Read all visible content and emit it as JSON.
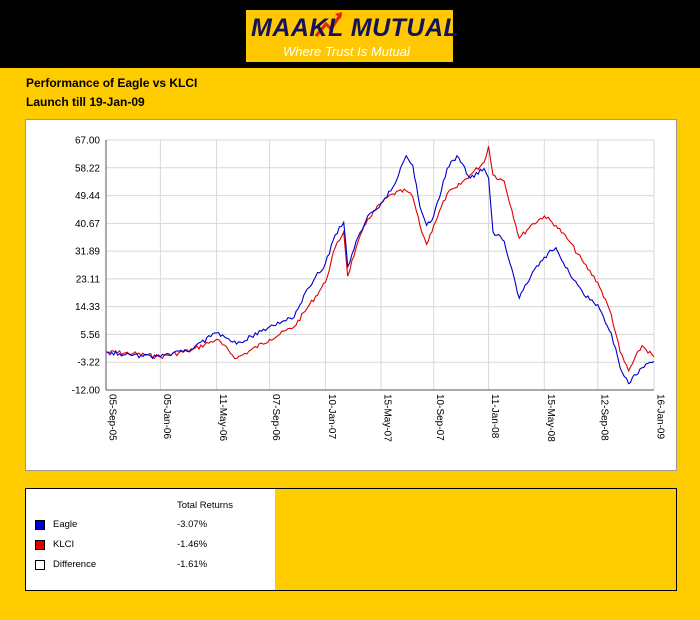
{
  "brand": {
    "name": "MAAKL MUTUAL",
    "tagline": "Where Trust Is Mutual",
    "colors": {
      "navy": "#13135a",
      "gold": "#ffc800",
      "arrow": "#e2231a"
    }
  },
  "header": {
    "title": "Performance of Eagle vs KLCI",
    "subtitle": "Launch till 19-Jan-09"
  },
  "chart_data": {
    "type": "line",
    "grid": true,
    "ylim": [
      -12.0,
      67.0
    ],
    "y_ticks": [
      "67.00",
      "58.22",
      "49.44",
      "40.67",
      "31.89",
      "23.11",
      "14.33",
      "5.56",
      "-3.22",
      "-12.00"
    ],
    "x_ticks": [
      "05-Sep-05",
      "05-Jan-06",
      "11-May-06",
      "07-Sep-06",
      "10-Jan-07",
      "15-May-07",
      "10-Sep-07",
      "11-Jan-08",
      "15-May-08",
      "12-Sep-08",
      "16-Jan-09"
    ],
    "series": [
      {
        "name": "Eagle",
        "color": "#0000cc",
        "points": [
          [
            "05-Sep-05",
            0.0
          ],
          [
            "05-Nov-05",
            -1.0
          ],
          [
            "05-Jan-06",
            -1.5
          ],
          [
            "15-Mar-06",
            1.0
          ],
          [
            "11-May-06",
            6.0
          ],
          [
            "25-Jun-06",
            2.5
          ],
          [
            "07-Sep-06",
            8.0
          ],
          [
            "01-Nov-06",
            11.0
          ],
          [
            "01-Dec-06",
            20.0
          ],
          [
            "10-Jan-07",
            28.0
          ],
          [
            "01-Feb-07",
            37.0
          ],
          [
            "20-Feb-07",
            41.0
          ],
          [
            "01-Mar-07",
            27.0
          ],
          [
            "20-Mar-07",
            35.0
          ],
          [
            "15-Apr-07",
            43.0
          ],
          [
            "15-May-07",
            47.0
          ],
          [
            "10-Jun-07",
            52.0
          ],
          [
            "10-Jul-07",
            62.0
          ],
          [
            "25-Jul-07",
            59.0
          ],
          [
            "10-Aug-07",
            46.0
          ],
          [
            "25-Aug-07",
            40.0
          ],
          [
            "10-Sep-07",
            43.0
          ],
          [
            "10-Oct-07",
            58.0
          ],
          [
            "01-Nov-07",
            62.0
          ],
          [
            "01-Dec-07",
            55.0
          ],
          [
            "01-Jan-08",
            58.0
          ],
          [
            "11-Jan-08",
            55.0
          ],
          [
            "21-Jan-08",
            38.0
          ],
          [
            "15-Feb-08",
            35.0
          ],
          [
            "20-Mar-08",
            17.0
          ],
          [
            "15-Apr-08",
            24.0
          ],
          [
            "15-May-08",
            30.0
          ],
          [
            "10-Jun-08",
            33.0
          ],
          [
            "10-Jul-08",
            25.0
          ],
          [
            "12-Aug-08",
            18.0
          ],
          [
            "12-Sep-08",
            15.0
          ],
          [
            "12-Oct-08",
            6.0
          ],
          [
            "01-Nov-08",
            -5.0
          ],
          [
            "20-Nov-08",
            -10.0
          ],
          [
            "20-Dec-08",
            -5.0
          ],
          [
            "16-Jan-09",
            -3.0
          ]
        ]
      },
      {
        "name": "KLCI",
        "color": "#e00000",
        "points": [
          [
            "05-Sep-05",
            0.0
          ],
          [
            "05-Nov-05",
            -0.5
          ],
          [
            "05-Jan-06",
            -1.5
          ],
          [
            "15-Mar-06",
            0.5
          ],
          [
            "11-May-06",
            4.0
          ],
          [
            "25-Jun-06",
            -2.0
          ],
          [
            "07-Sep-06",
            4.0
          ],
          [
            "01-Nov-06",
            8.0
          ],
          [
            "01-Dec-06",
            14.0
          ],
          [
            "10-Jan-07",
            22.0
          ],
          [
            "01-Feb-07",
            33.0
          ],
          [
            "20-Feb-07",
            38.0
          ],
          [
            "01-Mar-07",
            24.0
          ],
          [
            "20-Mar-07",
            33.0
          ],
          [
            "15-Apr-07",
            42.0
          ],
          [
            "15-May-07",
            47.0
          ],
          [
            "10-Jun-07",
            50.0
          ],
          [
            "10-Jul-07",
            51.0
          ],
          [
            "25-Jul-07",
            49.0
          ],
          [
            "10-Aug-07",
            40.0
          ],
          [
            "25-Aug-07",
            34.0
          ],
          [
            "10-Sep-07",
            40.0
          ],
          [
            "10-Oct-07",
            50.0
          ],
          [
            "01-Nov-07",
            52.0
          ],
          [
            "01-Dec-07",
            56.0
          ],
          [
            "01-Jan-08",
            60.0
          ],
          [
            "11-Jan-08",
            65.0
          ],
          [
            "21-Jan-08",
            56.0
          ],
          [
            "15-Feb-08",
            54.0
          ],
          [
            "20-Mar-08",
            36.0
          ],
          [
            "15-Apr-08",
            40.0
          ],
          [
            "15-May-08",
            43.0
          ],
          [
            "10-Jun-08",
            40.0
          ],
          [
            "10-Jul-08",
            35.0
          ],
          [
            "12-Aug-08",
            28.0
          ],
          [
            "12-Sep-08",
            22.0
          ],
          [
            "12-Oct-08",
            12.0
          ],
          [
            "01-Nov-08",
            0.0
          ],
          [
            "20-Nov-08",
            -6.0
          ],
          [
            "20-Dec-08",
            2.0
          ],
          [
            "16-Jan-09",
            -1.5
          ]
        ]
      }
    ]
  },
  "returns": {
    "header": "Total Returns",
    "rows": [
      {
        "label": "Eagle",
        "value": "-3.07%",
        "color": "#0000cc"
      },
      {
        "label": "KLCI",
        "value": "-1.46%",
        "color": "#e00000"
      },
      {
        "label": "Difference",
        "value": "-1.61%",
        "color": "#ffffff"
      }
    ]
  }
}
